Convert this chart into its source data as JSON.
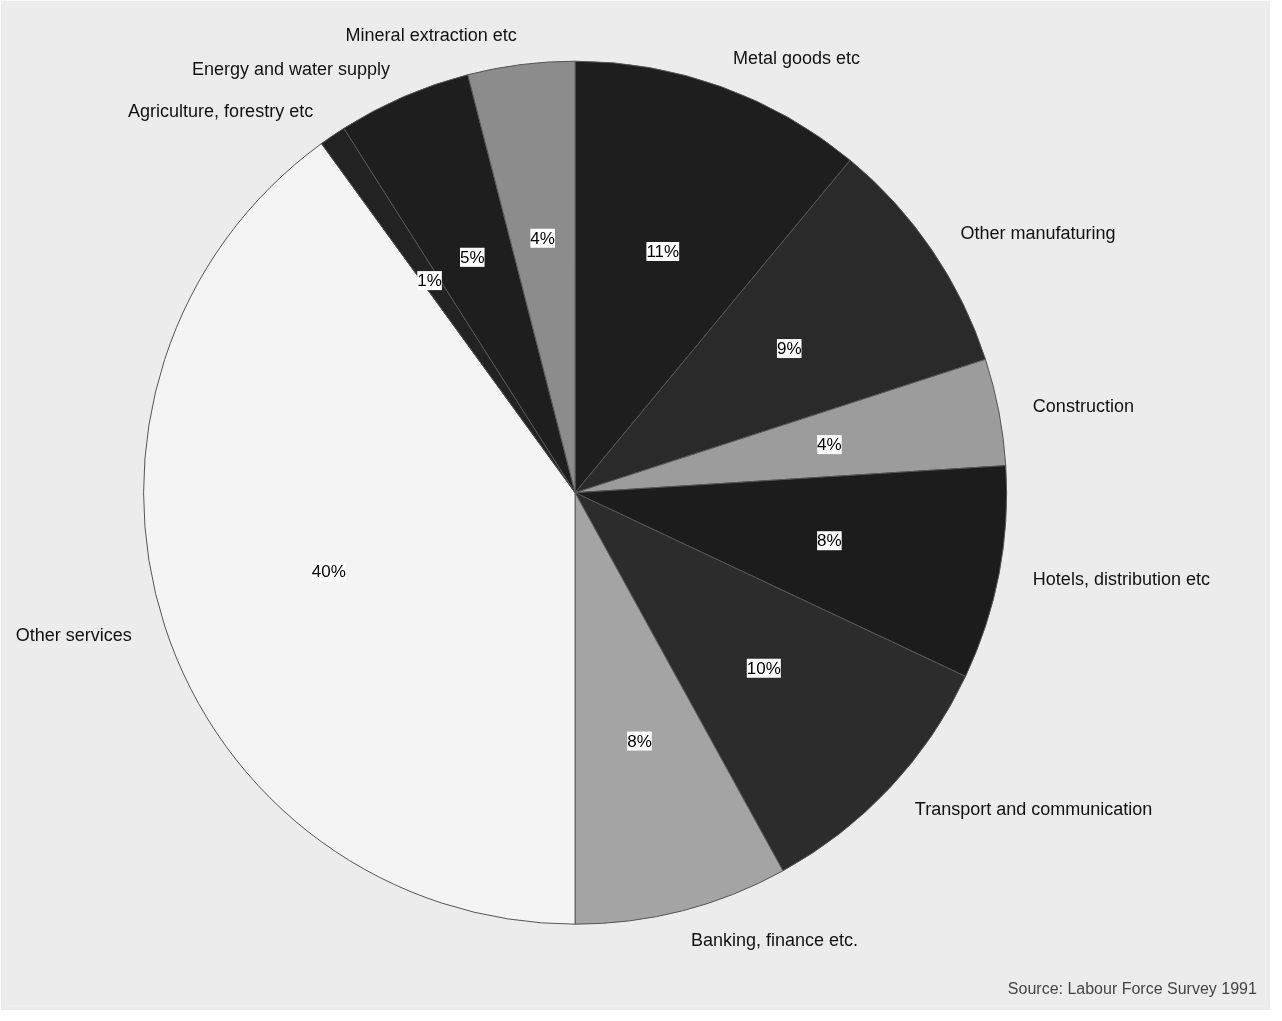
{
  "chart_data": {
    "type": "pie",
    "categories": [
      "Metal goods etc",
      "Other manufaturing",
      "Construction",
      "Hotels, distribution etc",
      "Transport and communication",
      "Banking, finance etc.",
      "Other services",
      "Agriculture, forestry etc",
      "Energy and water supply",
      "Mineral extraction etc"
    ],
    "values": [
      11,
      9,
      4,
      8,
      10,
      8,
      40,
      1,
      5,
      4
    ],
    "value_labels": [
      "11%",
      "9%",
      "4%",
      "8%",
      "10%",
      "8%",
      "40%",
      "1%",
      "5%",
      "4%"
    ],
    "colors": [
      "#1e1e1e",
      "#2a2a2a",
      "#9c9c9c",
      "#1c1c1c",
      "#2c2c2c",
      "#a4a4a4",
      "#f4f4f4",
      "#222222",
      "#1e1e1e",
      "#8c8c8c"
    ],
    "annotations": [
      "Source: Labour Force Survey 1991"
    ]
  }
}
